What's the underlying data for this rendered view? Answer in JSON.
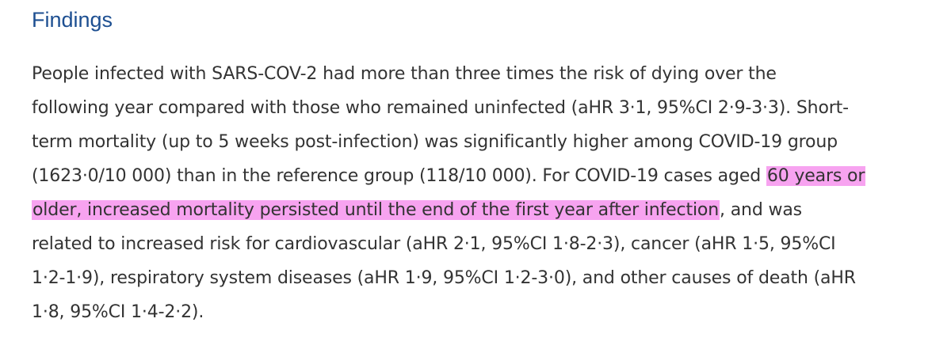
{
  "section": {
    "heading": "Findings"
  },
  "paragraph": {
    "lines": [
      "People infected with SARS-COV-2 had more than three times the risk of dying over the",
      "following year compared with those who remained uninfected (aHR 3·1, 95%CI 2·9-3·3). Short-",
      "term mortality (up to 5 weeks post-infection) was significantly higher among COVID-19 group",
      "(1623·0/10 000) than in the reference group (118/10 000). For COVID-19 cases aged ",
      "60 years or",
      "older, increased mortality persisted until the end of the first year after infection",
      ", and was",
      "related to increased risk for cardiovascular (aHR 2·1, 95%CI 1·8-2·3), cancer (aHR 1·5, 95%CI",
      "1·2-1·9), respiratory system diseases (aHR 1·9, 95%CI 1·2-3·0), and other causes of death (aHR",
      "1·8, 95%CI 1·4-2·2)."
    ],
    "highlight_color": "#f7a3f0"
  }
}
